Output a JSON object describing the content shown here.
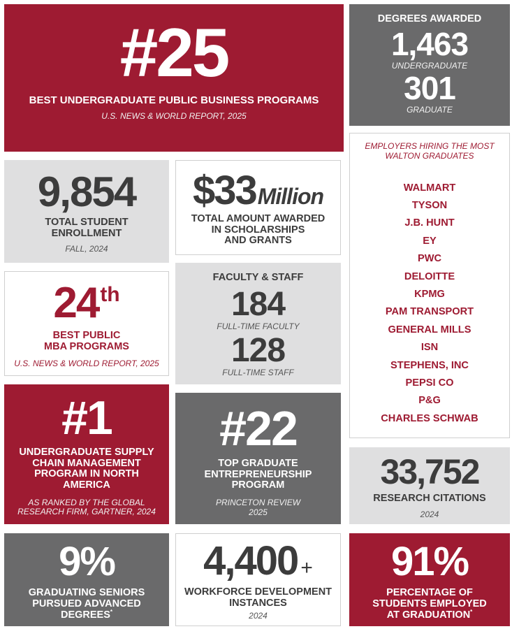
{
  "rank25": {
    "value": "#25",
    "label": "BEST UNDERGRADUATE PUBLIC BUSINESS PROGRAMS",
    "source": "U.S. NEWS & WORLD REPORT, 2025"
  },
  "degrees": {
    "title": "DEGREES AWARDED",
    "undergrad_value": "1,463",
    "undergrad_label": "UNDERGRADUATE",
    "grad_value": "301",
    "grad_label": "GRADUATE"
  },
  "enrollment": {
    "value": "9,854",
    "label_line1": "TOTAL STUDENT",
    "label_line2": "ENROLLMENT",
    "source": "FALL, 2024"
  },
  "scholarships": {
    "value": "$33",
    "unit": "Million",
    "label_line1": "TOTAL AMOUNT AWARDED",
    "label_line2": "IN SCHOLARSHIPS",
    "label_line3": "AND GRANTS"
  },
  "employers": {
    "title_line1": "EMPLOYERS HIRING THE MOST",
    "title_line2": "WALTON GRADUATES",
    "list": [
      "WALMART",
      "TYSON",
      "J.B. HUNT",
      "EY",
      "PWC",
      "DELOITTE",
      "KPMG",
      "PAM TRANSPORT",
      "GENERAL MILLS",
      "ISN",
      "STEPHENS, INC",
      "PEPSI CO",
      "P&G",
      "CHARLES SCHWAB"
    ]
  },
  "mba": {
    "value": "24",
    "suffix": "th",
    "label_line1": "BEST PUBLIC",
    "label_line2": "MBA PROGRAMS",
    "source": "U.S. NEWS & WORLD REPORT, 2025"
  },
  "faculty": {
    "title": "FACULTY & STAFF",
    "faculty_value": "184",
    "faculty_label": "FULL-TIME FACULTY",
    "staff_value": "128",
    "staff_label": "FULL-TIME STAFF"
  },
  "supply": {
    "value": "#1",
    "label_line1": "UNDERGRADUATE SUPPLY",
    "label_line2": "CHAIN MANAGEMENT",
    "label_line3": "PROGRAM IN NORTH",
    "label_line4": "AMERICA",
    "source_line1": "AS RANKED BY THE GLOBAL",
    "source_line2": "RESEARCH FIRM, GARTNER, 2024"
  },
  "entrepreneurship": {
    "value": "#22",
    "label_line1": "TOP GRADUATE",
    "label_line2": "ENTREPRENEURSHIP",
    "label_line3": "PROGRAM",
    "source_line1": "PRINCETON REVIEW",
    "source_line2": "2025"
  },
  "citations": {
    "value": "33,752",
    "label": "RESEARCH CITATIONS",
    "source": "2024"
  },
  "advanced": {
    "value": "9%",
    "label_line1": "GRADUATING SENIORS",
    "label_line2": "PURSUED ADVANCED",
    "label_line3": "DEGREES",
    "mark": "*"
  },
  "workforce": {
    "value": "4,400",
    "plus": "+",
    "label_line1": "WORKFORCE DEVELOPMENT",
    "label_line2": "INSTANCES",
    "source": "2024"
  },
  "employed": {
    "value": "91%",
    "label_line1": "PERCENTAGE OF",
    "label_line2": "STUDENTS EMPLOYED",
    "label_line3": "AT GRADUATION",
    "mark": "*"
  },
  "colors": {
    "red": "#9e1b32",
    "gray": "#6a6a6b",
    "light": "#dfdfe0",
    "text": "#3a3a3a"
  }
}
